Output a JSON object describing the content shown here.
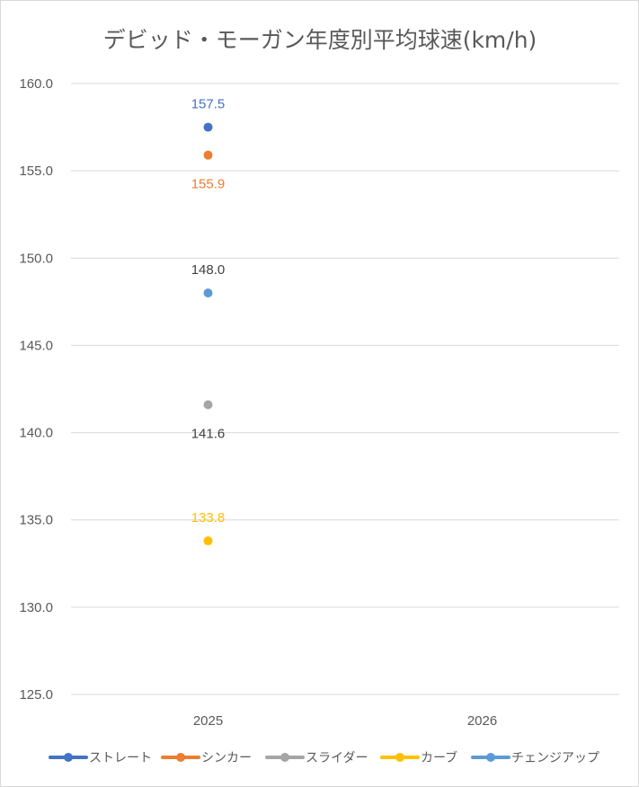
{
  "chart_data": {
    "type": "scatter",
    "title": "デビッド・モーガン年度別平均球速(km/h)",
    "categories": [
      "2025",
      "2026"
    ],
    "y_ticks": [
      "125.0",
      "130.0",
      "135.0",
      "140.0",
      "145.0",
      "150.0",
      "155.0",
      "160.0"
    ],
    "ylim": [
      125.0,
      160.0
    ],
    "grid": true,
    "legend": "bottom",
    "series": [
      {
        "name": "ストレート",
        "color": "#4472c4",
        "values": [
          157.5,
          null
        ],
        "labels": [
          "157.5",
          ""
        ],
        "label_pos": "above"
      },
      {
        "name": "シンカー",
        "color": "#ed7d31",
        "values": [
          155.9,
          null
        ],
        "labels": [
          "155.9",
          ""
        ],
        "label_pos": "below"
      },
      {
        "name": "スライダー",
        "color": "#a5a5a5",
        "values": [
          141.6,
          null
        ],
        "labels": [
          "141.6",
          ""
        ],
        "label_pos": "below"
      },
      {
        "name": "カーブ",
        "color": "#ffc000",
        "values": [
          133.8,
          null
        ],
        "labels": [
          "133.8",
          ""
        ],
        "label_pos": "above"
      },
      {
        "name": "チェンジアップ",
        "color": "#5b9bd5",
        "values": [
          148.0,
          null
        ],
        "labels": [
          "148.0",
          ""
        ],
        "label_pos": "above"
      }
    ],
    "label_colors": {
      "ストレート": "#4472c4",
      "シンカー": "#ed7d31",
      "スライダー": "#404040",
      "カーブ": "#ffc000",
      "チェンジアップ": "#404040"
    }
  }
}
